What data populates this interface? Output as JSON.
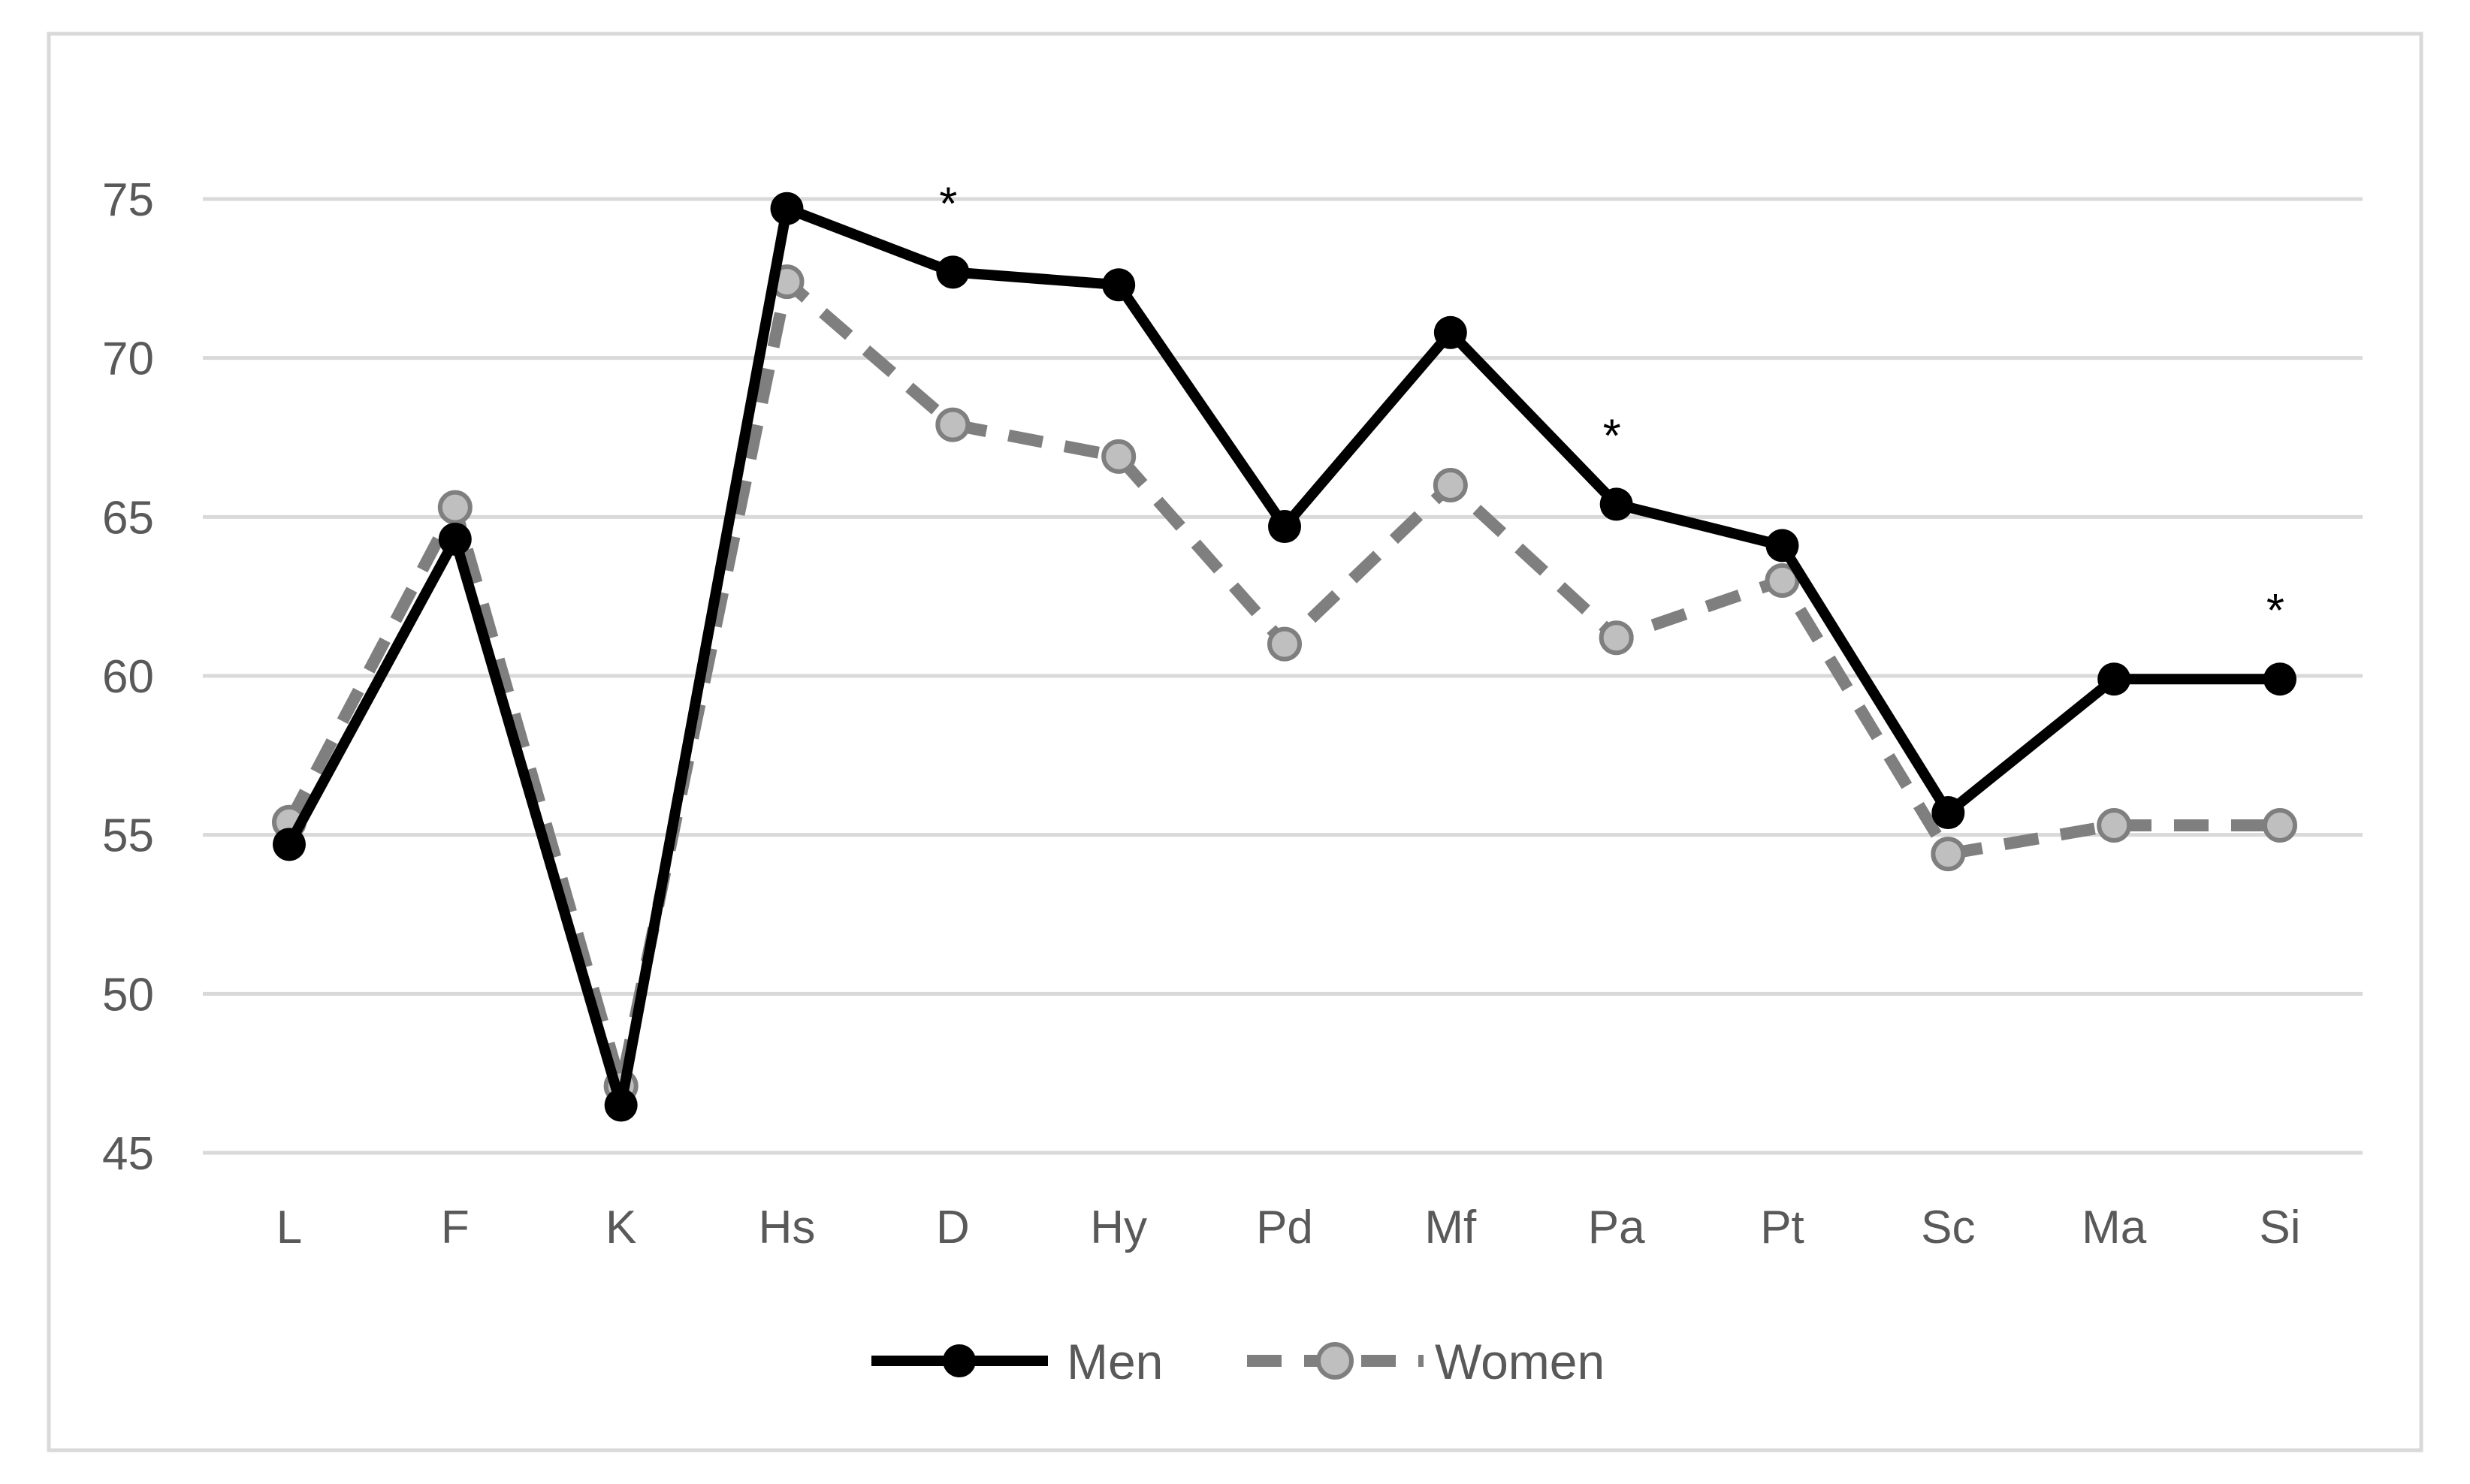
{
  "chart_data": {
    "type": "line",
    "categories": [
      "L",
      "F",
      "K",
      "Hs",
      "D",
      "Hy",
      "Pd",
      "Mf",
      "Pa",
      "Pt",
      "Sc",
      "Ma",
      "Si"
    ],
    "series": [
      {
        "name": "Men",
        "values": [
          54.7,
          64.3,
          46.5,
          74.7,
          72.7,
          72.3,
          64.7,
          70.8,
          65.4,
          64.1,
          55.7,
          59.9,
          59.9
        ],
        "color": "#000000",
        "marker_fill": "#000000",
        "line_style": "solid"
      },
      {
        "name": "Women",
        "values": [
          55.4,
          65.3,
          47.1,
          72.4,
          67.9,
          66.9,
          61.0,
          66.0,
          61.2,
          63.0,
          54.4,
          55.3,
          55.3
        ],
        "color": "#7f7f7f",
        "marker_fill": "#bfbfbf",
        "line_style": "dashed"
      }
    ],
    "yticks": [
      "45",
      "50",
      "55",
      "60",
      "65",
      "70",
      "75"
    ],
    "ytick_values": [
      45,
      50,
      55,
      60,
      65,
      70,
      75
    ],
    "ylim": [
      45,
      78
    ],
    "annotations": [
      {
        "category": "D",
        "text": "*"
      },
      {
        "category": "Pa",
        "text": "*"
      },
      {
        "category": "Si",
        "text": "*"
      }
    ],
    "title": "",
    "xlabel": "",
    "ylabel": "",
    "grid": true,
    "legend_position": "bottom"
  }
}
